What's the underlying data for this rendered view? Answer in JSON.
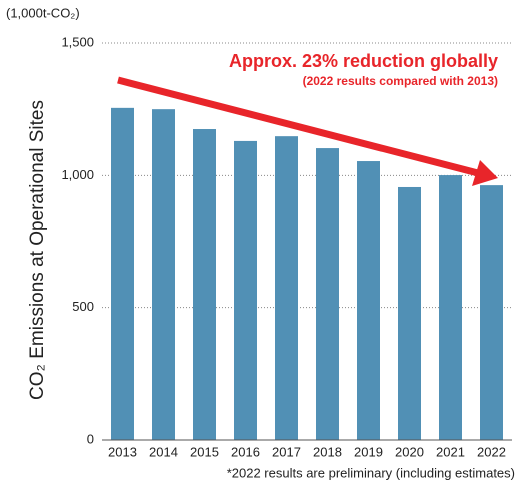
{
  "chart_data": {
    "type": "bar",
    "unit_label": "(1,000t-CO₂)",
    "y_axis_label": "CO₂ Emissions at Operational Sites",
    "annotation": "Approx. 23% reduction globally",
    "annotation_sub": "(2022 results compared with 2013)",
    "footnote": "*2022 results are preliminary (including estimates)",
    "categories": [
      "2013",
      "2014",
      "2015",
      "2016",
      "2017",
      "2018",
      "2019",
      "2020",
      "2021",
      "2022"
    ],
    "values": [
      1255,
      1250,
      1175,
      1130,
      1148,
      1103,
      1054,
      956,
      1001,
      963
    ],
    "color": "#5190b5",
    "ylim": [
      0,
      1500
    ],
    "yticks": [
      0,
      500,
      {
        "value": 1000,
        "label": "1,000"
      },
      {
        "value": 1500,
        "label": "1,500"
      }
    ],
    "grid": true
  }
}
